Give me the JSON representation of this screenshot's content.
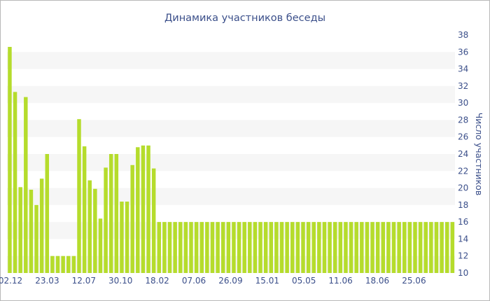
{
  "chart_data": {
    "type": "bar",
    "title": "Динамика участников беседы",
    "ylabel": "Число участников",
    "xlabel": "",
    "ylim": [
      10,
      38
    ],
    "y_ticks": [
      10,
      12,
      14,
      16,
      18,
      20,
      22,
      24,
      26,
      28,
      30,
      32,
      34,
      36,
      38
    ],
    "x_tick_labels": [
      "02.12",
      "23.03",
      "12.07",
      "30.10",
      "18.02",
      "07.06",
      "26.09",
      "15.01",
      "05.05",
      "11.06",
      "18.06",
      "25.06"
    ],
    "y_axis_position": "right",
    "grid": "alternating horizontal bands",
    "legend": "none",
    "bar_color": "#b5dc2c",
    "band_color": "#f6f6f6",
    "values": [
      36.6,
      31.3,
      20.1,
      30.7,
      19.8,
      18.0,
      21.1,
      24.0,
      12.0,
      12.0,
      12.0,
      12.0,
      12.0,
      28.1,
      24.9,
      20.9,
      19.9,
      16.4,
      22.4,
      24.0,
      24.0,
      18.4,
      18.4,
      22.7,
      24.8,
      25.0,
      25.0,
      22.3,
      16.0,
      16.0,
      16.0,
      16.0,
      16.0,
      16.0,
      16.0,
      16.0,
      16.0,
      16.0,
      16.0,
      16.0,
      16.0,
      16.0,
      16.0,
      16.0,
      16.0,
      16.0,
      16.0,
      16.0,
      16.0,
      16.0,
      16.0,
      16.0,
      16.0,
      16.0,
      16.0,
      16.0,
      16.0,
      16.0,
      16.0,
      16.0,
      16.0,
      16.0,
      16.0,
      16.0,
      16.0,
      16.0,
      16.0,
      16.0,
      16.0,
      16.0,
      16.0,
      16.0,
      16.0,
      16.0,
      16.0,
      16.0,
      16.0,
      16.0,
      16.0,
      16.0,
      16.0,
      16.0,
      16.0,
      16.0
    ]
  }
}
